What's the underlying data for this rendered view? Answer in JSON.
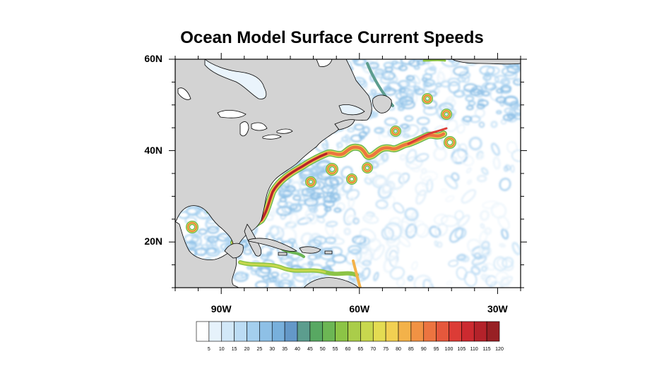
{
  "title": "Ocean Model Surface Current Speeds",
  "map": {
    "extent": {
      "lon_min": -100,
      "lon_max": -25,
      "lat_min": 10,
      "lat_max": 60
    },
    "lat_ticks": [
      {
        "value": 20,
        "label": "20N"
      },
      {
        "value": 40,
        "label": "40N"
      },
      {
        "value": 60,
        "label": "60N"
      }
    ],
    "lon_ticks": [
      {
        "value": -90,
        "label": "90W"
      },
      {
        "value": -60,
        "label": "60W"
      },
      {
        "value": -30,
        "label": "30W"
      }
    ],
    "land_color": "#d3d3d3",
    "ocean_color": "#ffffff"
  },
  "colorbar": {
    "labels": [
      "5",
      "10",
      "15",
      "20",
      "25",
      "30",
      "35",
      "40",
      "45",
      "50",
      "55",
      "60",
      "65",
      "70",
      "75",
      "80",
      "85",
      "90",
      "95",
      "100",
      "105",
      "110",
      "115",
      "120"
    ],
    "colors": [
      "#ffffff",
      "#e6f2fb",
      "#d2e8f8",
      "#bcdcf4",
      "#a4cfee",
      "#8ec0e6",
      "#78b0dc",
      "#6498c8",
      "#5c9d8e",
      "#58a862",
      "#6cb654",
      "#8cc446",
      "#aacd4a",
      "#c8d84e",
      "#e4dc52",
      "#f2d052",
      "#f3b24a",
      "#f19244",
      "#ec7440",
      "#e5583c",
      "#dc3c36",
      "#cc2a30",
      "#b4222a",
      "#982024"
    ]
  }
}
